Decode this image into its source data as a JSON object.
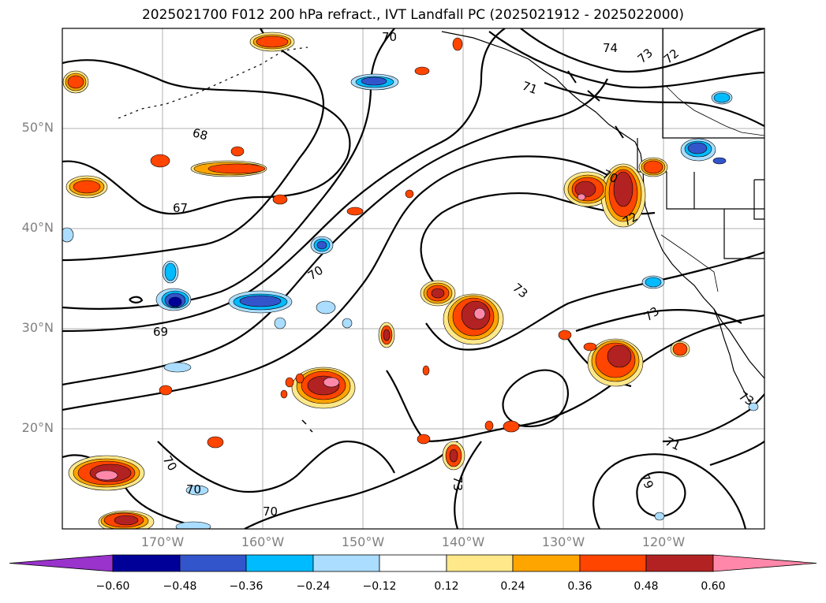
{
  "title": "2025021700 F012 200 hPa refract., IVT Landfall PC (2025021912 - 2025022000)",
  "map": {
    "lat_labels": [
      "50°N",
      "40°N",
      "30°N",
      "20°N"
    ],
    "lon_labels": [
      "170°W",
      "160°W",
      "150°W",
      "140°W",
      "130°W",
      "120°W"
    ],
    "contour_labels": [
      "70",
      "74",
      "73",
      "72",
      "71",
      "68",
      "67",
      "70",
      "70",
      "72",
      "73",
      "73",
      "69",
      "73",
      "70",
      "70",
      "70",
      "71",
      "79",
      "73"
    ],
    "grid": true
  },
  "colorbar": {
    "ticks": [
      "−0.60",
      "−0.48",
      "−0.36",
      "−0.24",
      "−0.12",
      "0.12",
      "0.24",
      "0.36",
      "0.48",
      "0.60"
    ],
    "colors": [
      "#9933cc",
      "#000099",
      "#3355cc",
      "#00bbff",
      "#aaddff",
      "#ffffff",
      "#ffe88a",
      "#ffa500",
      "#ff4500",
      "#b22222",
      "#ff88aa"
    ]
  }
}
